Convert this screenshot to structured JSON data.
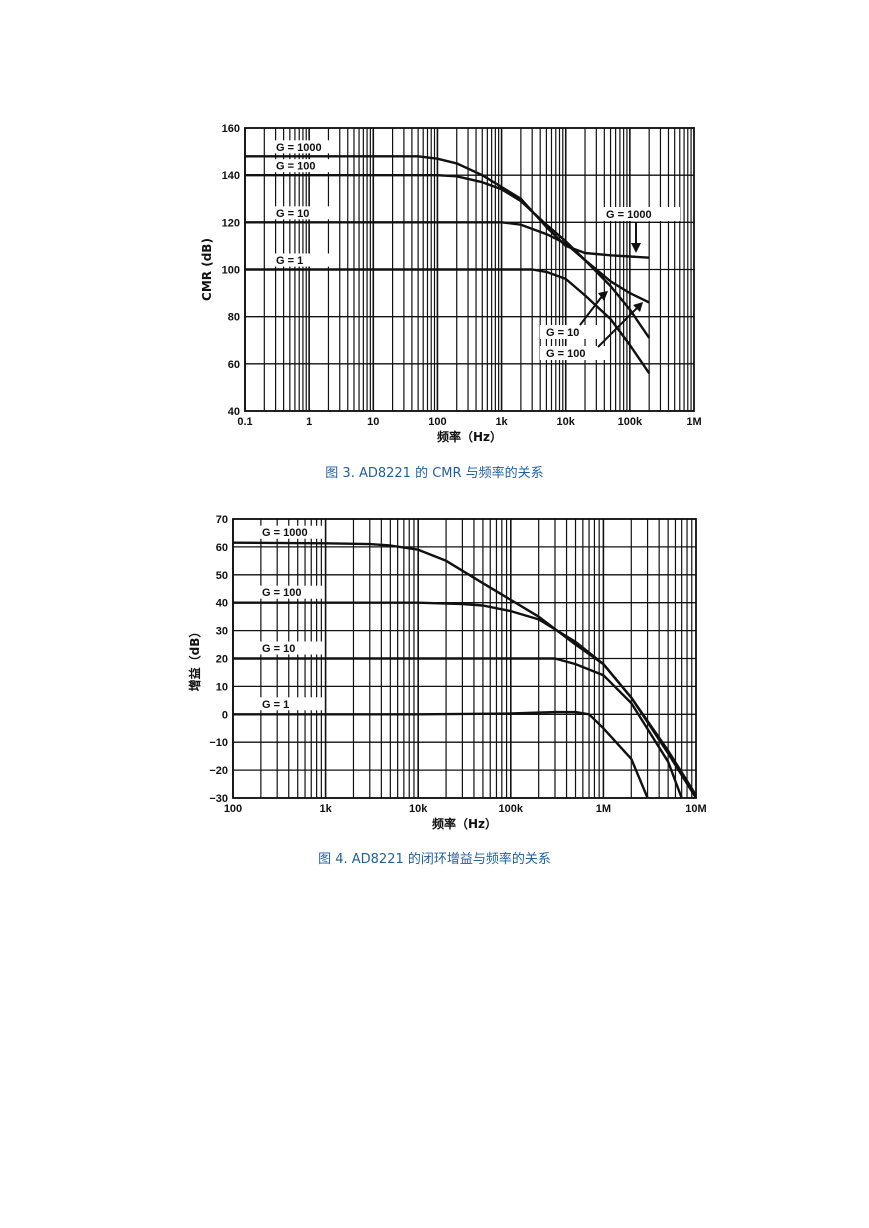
{
  "chart_data": [
    {
      "type": "line",
      "x_scale": "log",
      "xlabel": "频率（Hz）",
      "ylabel": "CMR (dB)",
      "xlim": [
        0.1,
        1000000
      ],
      "ylim": [
        40,
        160
      ],
      "x_tick_labels": [
        "0.1",
        "1",
        "10",
        "100",
        "1k",
        "10k",
        "100k",
        "1M"
      ],
      "x_tick_values": [
        0.1,
        1,
        10,
        100,
        1000,
        10000,
        100000,
        1000000
      ],
      "y_ticks": [
        40,
        60,
        80,
        100,
        120,
        140,
        160
      ],
      "grid": true,
      "series": [
        {
          "name": "G = 1000",
          "points": [
            [
              0.1,
              148
            ],
            [
              10,
              148
            ],
            [
              50,
              148
            ],
            [
              100,
              147
            ],
            [
              200,
              145
            ],
            [
              500,
              140
            ],
            [
              1000,
              135
            ],
            [
              2000,
              130
            ],
            [
              5000,
              118
            ],
            [
              10000,
              110
            ],
            [
              20000,
              107
            ],
            [
              50000,
              106
            ],
            [
              100000,
              105.5
            ],
            [
              200000,
              105
            ]
          ]
        },
        {
          "name": "G = 100",
          "points": [
            [
              0.1,
              140
            ],
            [
              10,
              140
            ],
            [
              100,
              140
            ],
            [
              200,
              139.5
            ],
            [
              500,
              137
            ],
            [
              1000,
              134
            ],
            [
              2000,
              129
            ],
            [
              5000,
              119
            ],
            [
              10000,
              112
            ],
            [
              20000,
              104
            ],
            [
              50000,
              95
            ],
            [
              100000,
              90
            ],
            [
              200000,
              86
            ]
          ]
        },
        {
          "name": "G = 10",
          "points": [
            [
              0.1,
              120
            ],
            [
              10,
              120
            ],
            [
              100,
              120
            ],
            [
              1000,
              120
            ],
            [
              2000,
              119
            ],
            [
              5000,
              115
            ],
            [
              10000,
              111
            ],
            [
              20000,
              104
            ],
            [
              50000,
              93
            ],
            [
              100000,
              83
            ],
            [
              200000,
              71
            ]
          ]
        },
        {
          "name": "G = 1",
          "points": [
            [
              0.1,
              100
            ],
            [
              10,
              100
            ],
            [
              1000,
              100
            ],
            [
              3000,
              100
            ],
            [
              5000,
              99
            ],
            [
              10000,
              96
            ],
            [
              20000,
              89
            ],
            [
              50000,
              79
            ],
            [
              100000,
              68
            ],
            [
              200000,
              56
            ]
          ]
        }
      ],
      "annotations": [
        "G = 1000",
        "G = 10",
        "G = 100"
      ],
      "caption": "图 3. AD8221 的 CMR 与频率的关系"
    },
    {
      "type": "line",
      "x_scale": "log",
      "xlabel": "频率（Hz）",
      "ylabel": "增益（dB）",
      "xlim": [
        100,
        10000000
      ],
      "ylim": [
        -30,
        70
      ],
      "x_tick_labels": [
        "100",
        "1k",
        "10k",
        "100k",
        "1M",
        "10M"
      ],
      "x_tick_values": [
        100,
        1000,
        10000,
        100000,
        1000000,
        10000000
      ],
      "y_ticks": [
        -30,
        -20,
        -10,
        0,
        10,
        20,
        30,
        40,
        50,
        60,
        70
      ],
      "y_tick_labels": [
        "−30",
        "−20",
        "−10",
        "0",
        "10",
        "20",
        "30",
        "40",
        "50",
        "60",
        "70"
      ],
      "grid": true,
      "series": [
        {
          "name": "G = 1000",
          "points": [
            [
              100,
              61.5
            ],
            [
              1000,
              61.3
            ],
            [
              3000,
              61
            ],
            [
              5000,
              60.5
            ],
            [
              10000,
              59
            ],
            [
              20000,
              55
            ],
            [
              50000,
              47
            ],
            [
              100000,
              41
            ],
            [
              200000,
              35
            ],
            [
              500000,
              25
            ],
            [
              1000000,
              18
            ],
            [
              2000000,
              6
            ],
            [
              5000000,
              -13
            ],
            [
              10000000,
              -29
            ]
          ]
        },
        {
          "name": "G = 100",
          "points": [
            [
              100,
              40
            ],
            [
              10000,
              40
            ],
            [
              30000,
              39.5
            ],
            [
              50000,
              39
            ],
            [
              100000,
              37
            ],
            [
              200000,
              34
            ],
            [
              500000,
              26
            ],
            [
              1000000,
              18
            ],
            [
              2000000,
              6
            ],
            [
              5000000,
              -14
            ],
            [
              10000000,
              -30
            ]
          ]
        },
        {
          "name": "G = 10",
          "points": [
            [
              100,
              20
            ],
            [
              100000,
              20
            ],
            [
              300000,
              20
            ],
            [
              500000,
              18
            ],
            [
              1000000,
              14
            ],
            [
              2000000,
              4
            ],
            [
              5000000,
              -17
            ],
            [
              7000000,
              -30
            ]
          ]
        },
        {
          "name": "G = 1",
          "points": [
            [
              100,
              0
            ],
            [
              10000,
              0
            ],
            [
              100000,
              0.3
            ],
            [
              300000,
              0.8
            ],
            [
              500000,
              0.8
            ],
            [
              700000,
              0
            ],
            [
              1000000,
              -5
            ],
            [
              2000000,
              -16
            ],
            [
              3000000,
              -30
            ]
          ]
        }
      ],
      "caption": "图 4. AD8221 的闭环增益与频率的关系"
    }
  ]
}
